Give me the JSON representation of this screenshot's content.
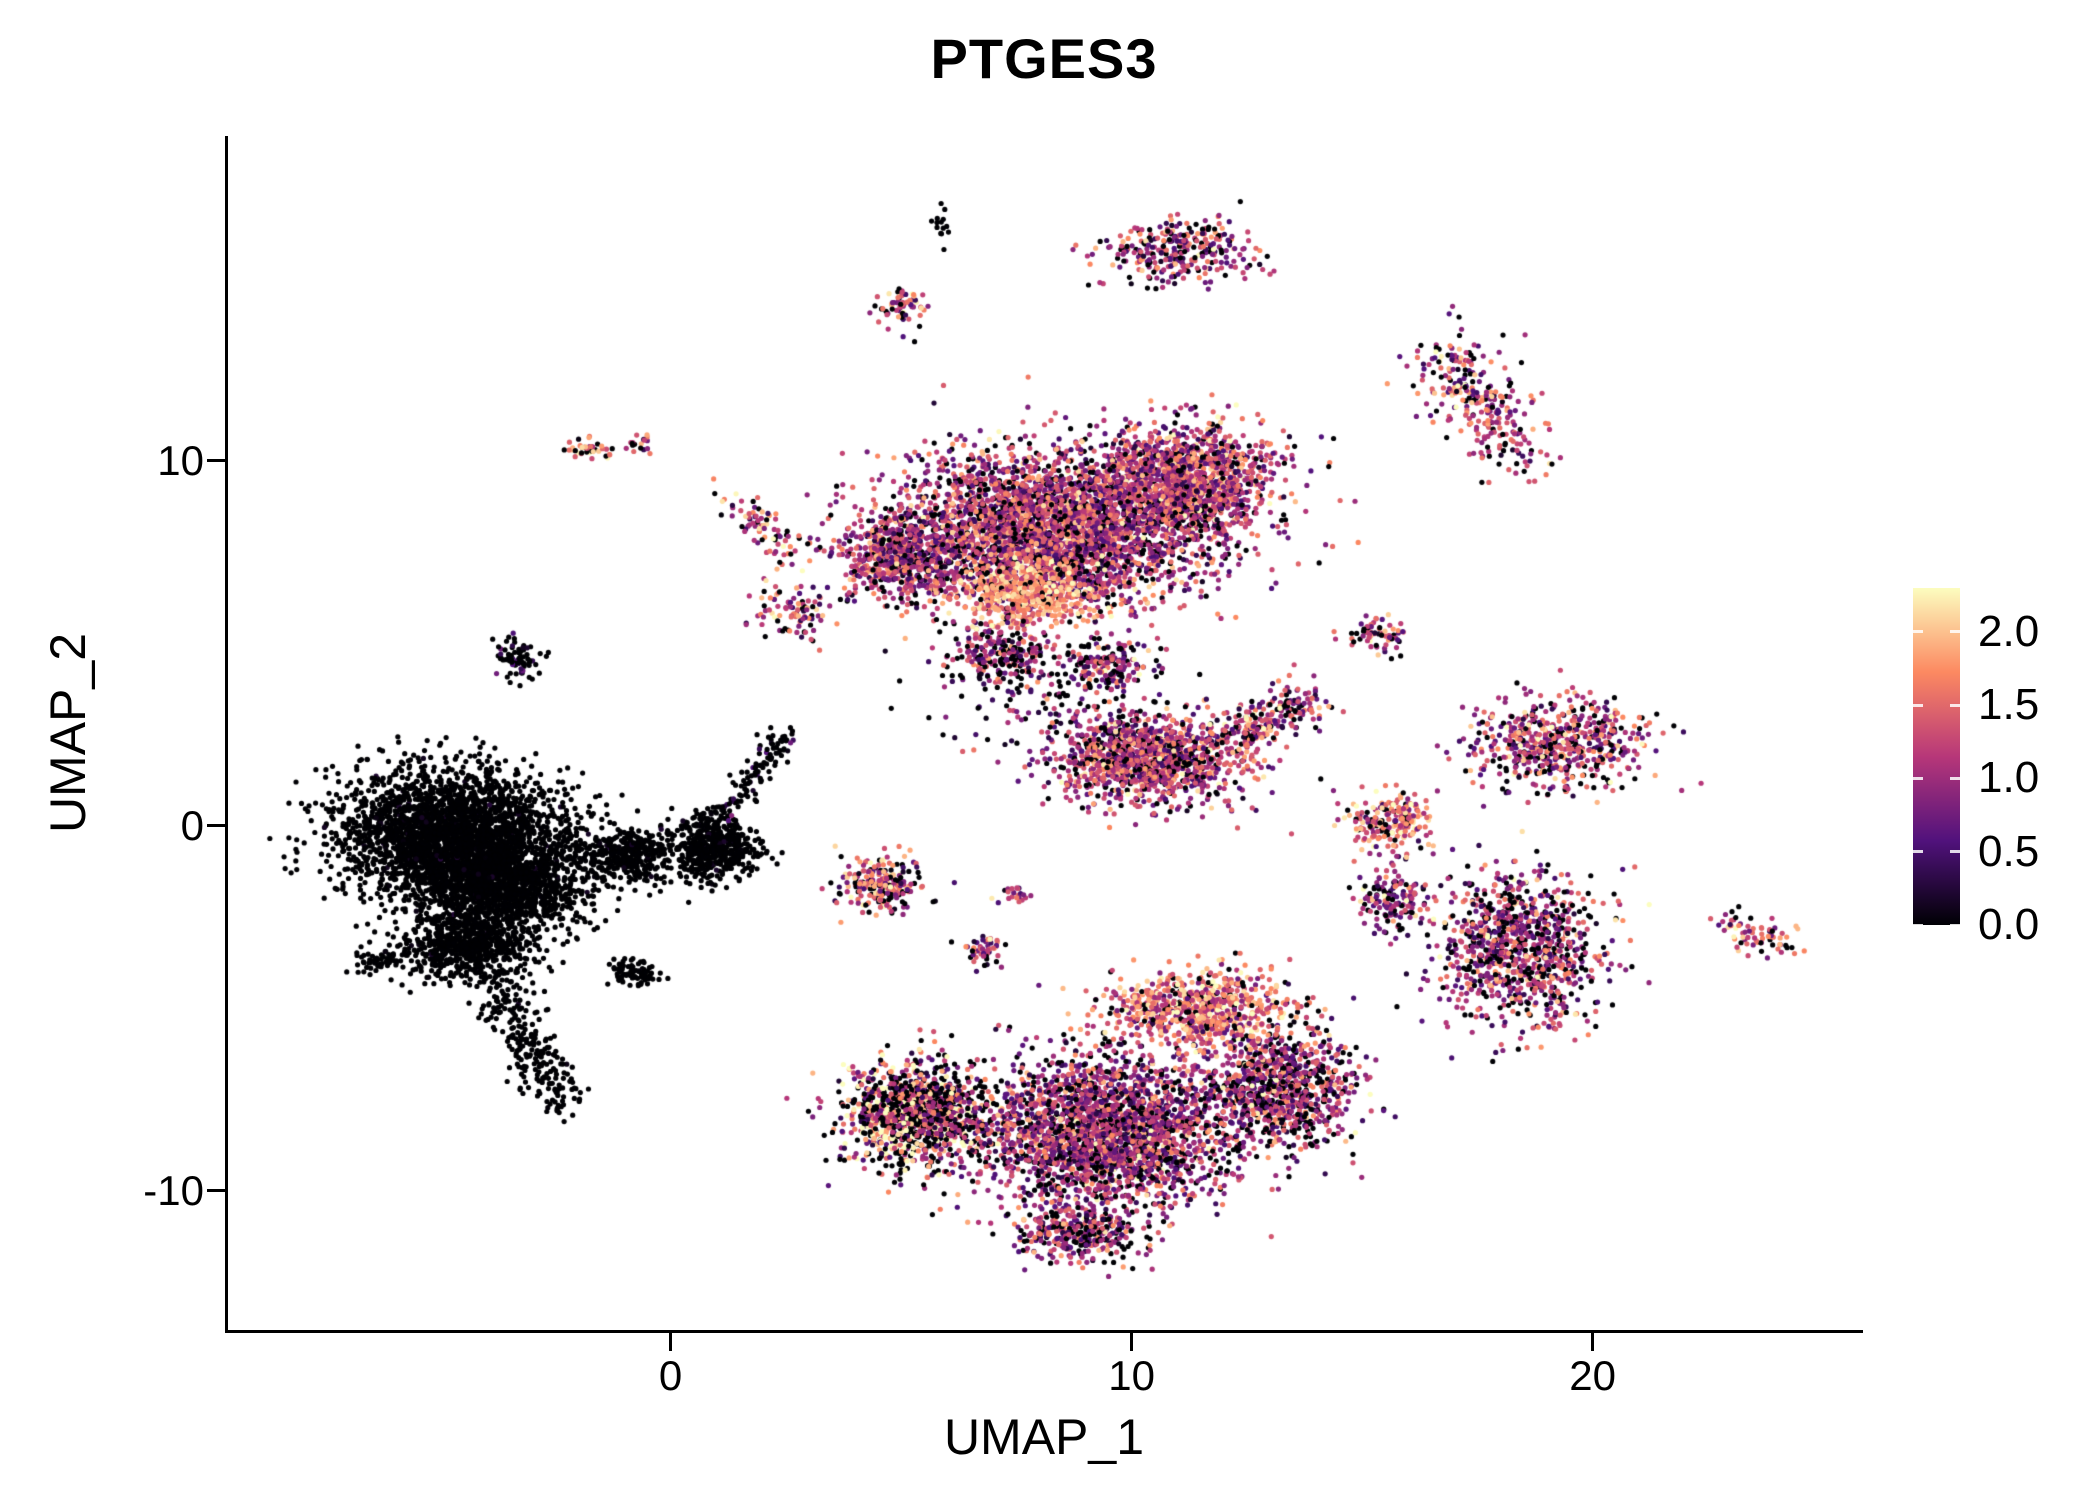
{
  "chart_data": {
    "type": "scatter",
    "title": "PTGES3",
    "xlabel": "UMAP_1",
    "ylabel": "UMAP_2",
    "xlim": [
      -9.6,
      25.8
    ],
    "ylim": [
      -13.9,
      18.9
    ],
    "x_ticks": [
      0,
      10,
      20
    ],
    "y_ticks": [
      -10,
      0,
      10
    ],
    "grid": false,
    "point_radius_px": 2.6,
    "colorbar": {
      "position": "right",
      "ticks": [
        2.0,
        1.5,
        1.0,
        0.5,
        0.0
      ],
      "vmin": 0,
      "vmax": 2.3,
      "colormap": "magma",
      "stops": [
        [
          0.0,
          "#000004"
        ],
        [
          0.25,
          "#51127c"
        ],
        [
          0.5,
          "#b73779"
        ],
        [
          0.75,
          "#fc8961"
        ],
        [
          1.0,
          "#fcfdbf"
        ]
      ]
    },
    "colors": {
      "background": "#ffffff",
      "axis": "#000000",
      "text": "#000000"
    },
    "clusters": [
      {
        "name": "black-main",
        "type": "blob",
        "cx": -4.8,
        "cy": -0.2,
        "rx": 2.3,
        "ry": 1.7,
        "n": 2600,
        "mean": 0.05,
        "sd": 0.1,
        "zero": 0.97
      },
      {
        "name": "black-main-2",
        "type": "blob",
        "cx": -3.6,
        "cy": -1.6,
        "rx": 1.8,
        "ry": 1.3,
        "n": 1400,
        "mean": 0.05,
        "sd": 0.1,
        "zero": 0.97
      },
      {
        "name": "black-lower",
        "type": "blob",
        "cx": -4.4,
        "cy": -3.3,
        "rx": 1.4,
        "ry": 1.0,
        "n": 700,
        "mean": 0.05,
        "sd": 0.1,
        "zero": 0.97
      },
      {
        "name": "black-tail",
        "type": "streak",
        "x1": -3.8,
        "y1": -4.4,
        "x2": -2.3,
        "y2": -7.7,
        "w": 0.3,
        "n": 240,
        "mean": 0.05,
        "sd": 0.1,
        "zero": 0.97
      },
      {
        "name": "black-left-wisp",
        "type": "blob",
        "cx": -6.4,
        "cy": -3.7,
        "rx": 0.5,
        "ry": 0.3,
        "n": 50,
        "mean": 0.05,
        "sd": 0.1,
        "zero": 0.97
      },
      {
        "name": "black-bridge",
        "type": "blob",
        "cx": -0.9,
        "cy": -0.8,
        "rx": 1.0,
        "ry": 0.7,
        "n": 350,
        "mean": 0.05,
        "sd": 0.1,
        "zero": 0.96
      },
      {
        "name": "black-right-lobe",
        "type": "blob",
        "cx": 0.9,
        "cy": -0.6,
        "rx": 0.9,
        "ry": 0.85,
        "n": 550,
        "mean": 0.05,
        "sd": 0.1,
        "zero": 0.96
      },
      {
        "name": "black-bottom-clump",
        "type": "blob",
        "cx": -0.8,
        "cy": -4.0,
        "rx": 0.5,
        "ry": 0.35,
        "n": 80,
        "mean": 0.05,
        "sd": 0.1,
        "zero": 0.97
      },
      {
        "name": "black-trail-up",
        "type": "streak",
        "x1": 1.2,
        "y1": 0.2,
        "x2": 2.5,
        "y2": 2.6,
        "w": 0.18,
        "n": 110,
        "mean": 0.3,
        "sd": 0.3,
        "zero": 0.8
      },
      {
        "name": "dark-top-clump",
        "type": "blob",
        "cx": -3.3,
        "cy": 4.6,
        "rx": 0.45,
        "ry": 0.55,
        "n": 80,
        "mean": 0.3,
        "sd": 0.3,
        "zero": 0.8
      },
      {
        "name": "tiny-top-dark",
        "type": "blob",
        "cx": 5.9,
        "cy": 16.6,
        "rx": 0.22,
        "ry": 0.42,
        "n": 14,
        "mean": 0.1,
        "sd": 0.15,
        "zero": 0.9
      },
      {
        "name": "top-hook",
        "type": "blob",
        "cx": 10.8,
        "cy": 15.7,
        "rx": 1.4,
        "ry": 0.85,
        "n": 240,
        "mean": 1.1,
        "sd": 0.55,
        "zero": 0.18
      },
      {
        "name": "top-hook-arm",
        "type": "streak",
        "x1": 11.4,
        "y1": 16.4,
        "x2": 12.7,
        "y2": 15.4,
        "w": 0.25,
        "n": 60,
        "mean": 1.2,
        "sd": 0.5,
        "zero": 0.15
      },
      {
        "name": "top-left-small",
        "type": "blob",
        "cx": 5.0,
        "cy": 14.2,
        "rx": 0.5,
        "ry": 0.55,
        "n": 70,
        "mean": 1.4,
        "sd": 0.55,
        "zero": 0.2
      },
      {
        "name": "upper-left-a",
        "type": "blob",
        "cx": -1.8,
        "cy": 10.3,
        "rx": 0.5,
        "ry": 0.3,
        "n": 40,
        "mean": 1.6,
        "sd": 0.5,
        "zero": 0.15
      },
      {
        "name": "upper-left-b",
        "type": "blob",
        "cx": -0.6,
        "cy": 10.5,
        "rx": 0.3,
        "ry": 0.25,
        "n": 18,
        "mean": 1.2,
        "sd": 0.5,
        "zero": 0.15
      },
      {
        "name": "upper-left-streak",
        "type": "streak",
        "x1": 1.3,
        "y1": 8.9,
        "x2": 2.9,
        "y2": 7.4,
        "w": 0.25,
        "n": 80,
        "mean": 1.3,
        "sd": 0.55,
        "zero": 0.2
      },
      {
        "name": "central-main",
        "type": "blob",
        "cx": 8.2,
        "cy": 8.1,
        "rx": 3.2,
        "ry": 2.0,
        "n": 3600,
        "mean": 1.1,
        "sd": 0.5,
        "zero": 0.13
      },
      {
        "name": "central-right-lobe",
        "type": "blob",
        "cx": 11.2,
        "cy": 9.4,
        "rx": 1.8,
        "ry": 1.5,
        "n": 1300,
        "mean": 1.2,
        "sd": 0.5,
        "zero": 0.1
      },
      {
        "name": "central-left-lobe",
        "type": "blob",
        "cx": 4.9,
        "cy": 7.4,
        "rx": 1.2,
        "ry": 1.1,
        "n": 550,
        "mean": 1.1,
        "sd": 0.5,
        "zero": 0.15
      },
      {
        "name": "central-bright-patch",
        "type": "blob",
        "cx": 7.7,
        "cy": 6.4,
        "rx": 1.3,
        "ry": 0.85,
        "n": 550,
        "mean": 1.8,
        "sd": 0.35,
        "zero": 0.06
      },
      {
        "name": "central-below-a",
        "type": "blob",
        "cx": 7.1,
        "cy": 4.7,
        "rx": 1.1,
        "ry": 0.8,
        "n": 240,
        "mean": 1.0,
        "sd": 0.5,
        "zero": 0.3
      },
      {
        "name": "central-below-b",
        "type": "blob",
        "cx": 9.4,
        "cy": 4.4,
        "rx": 0.9,
        "ry": 0.7,
        "n": 170,
        "mean": 1.0,
        "sd": 0.5,
        "zero": 0.3
      },
      {
        "name": "mid-right",
        "type": "blob",
        "cx": 10.4,
        "cy": 1.8,
        "rx": 1.9,
        "ry": 1.15,
        "n": 1250,
        "mean": 1.15,
        "sd": 0.5,
        "zero": 0.15
      },
      {
        "name": "mid-right-arm",
        "type": "streak",
        "x1": 12.1,
        "y1": 2.4,
        "x2": 13.9,
        "y2": 3.5,
        "w": 0.35,
        "n": 220,
        "mean": 1.2,
        "sd": 0.5,
        "zero": 0.12
      },
      {
        "name": "mid-small",
        "type": "blob",
        "cx": 4.6,
        "cy": -1.6,
        "rx": 0.85,
        "ry": 0.7,
        "n": 230,
        "mean": 1.35,
        "sd": 0.6,
        "zero": 0.2
      },
      {
        "name": "mid-tiny-a",
        "type": "blob",
        "cx": 6.8,
        "cy": -3.4,
        "rx": 0.42,
        "ry": 0.45,
        "n": 50,
        "mean": 1.1,
        "sd": 0.5,
        "zero": 0.25
      },
      {
        "name": "mid-tiny-b",
        "type": "blob",
        "cx": 7.5,
        "cy": -1.9,
        "rx": 0.3,
        "ry": 0.28,
        "n": 22,
        "mean": 1.0,
        "sd": 0.5,
        "zero": 0.2
      },
      {
        "name": "right-upper-small",
        "type": "blob",
        "cx": 15.3,
        "cy": 5.2,
        "rx": 0.6,
        "ry": 0.45,
        "n": 70,
        "mean": 1.25,
        "sd": 0.5,
        "zero": 0.2
      },
      {
        "name": "right-small",
        "type": "blob",
        "cx": 15.6,
        "cy": 0.1,
        "rx": 0.95,
        "ry": 0.75,
        "n": 210,
        "mean": 1.5,
        "sd": 0.5,
        "zero": 0.12
      },
      {
        "name": "upper-right-streak",
        "type": "streak",
        "x1": 16.8,
        "y1": 12.9,
        "x2": 18.4,
        "y2": 10.1,
        "w": 0.5,
        "n": 280,
        "mean": 1.2,
        "sd": 0.55,
        "zero": 0.18
      },
      {
        "name": "right-wide",
        "type": "blob",
        "cx": 19.2,
        "cy": 2.3,
        "rx": 1.8,
        "ry": 1.2,
        "n": 600,
        "mean": 1.2,
        "sd": 0.55,
        "zero": 0.15
      },
      {
        "name": "right-lower",
        "type": "blob",
        "cx": 18.5,
        "cy": -3.4,
        "rx": 1.7,
        "ry": 2.0,
        "n": 950,
        "mean": 1.05,
        "sd": 0.55,
        "zero": 0.2
      },
      {
        "name": "far-right-streak",
        "type": "streak",
        "x1": 22.9,
        "y1": -2.6,
        "x2": 24.1,
        "y2": -3.3,
        "w": 0.28,
        "n": 70,
        "mean": 1.3,
        "sd": 0.5,
        "zero": 0.15
      },
      {
        "name": "bottom-left",
        "type": "blob",
        "cx": 5.3,
        "cy": -7.9,
        "rx": 1.5,
        "ry": 1.35,
        "n": 1150,
        "mean": 1.35,
        "sd": 0.75,
        "zero": 0.33
      },
      {
        "name": "bottom-main",
        "type": "blob",
        "cx": 9.4,
        "cy": -8.4,
        "rx": 2.6,
        "ry": 2.0,
        "n": 2600,
        "mean": 1.0,
        "sd": 0.5,
        "zero": 0.17
      },
      {
        "name": "bottom-right",
        "type": "blob",
        "cx": 13.2,
        "cy": -7.2,
        "rx": 1.5,
        "ry": 1.6,
        "n": 950,
        "mean": 1.0,
        "sd": 0.55,
        "zero": 0.2
      },
      {
        "name": "bottom-bright-band",
        "type": "blob",
        "cx": 11.4,
        "cy": -5.0,
        "rx": 1.8,
        "ry": 0.95,
        "n": 750,
        "mean": 1.55,
        "sd": 0.45,
        "zero": 0.1
      },
      {
        "name": "bottom-tip",
        "type": "blob",
        "cx": 8.8,
        "cy": -11.2,
        "rx": 1.3,
        "ry": 0.75,
        "n": 320,
        "mean": 0.95,
        "sd": 0.5,
        "zero": 0.25
      },
      {
        "name": "bridge-right",
        "type": "blob",
        "cx": 15.7,
        "cy": -2.0,
        "rx": 0.75,
        "ry": 0.95,
        "n": 160,
        "mean": 1.1,
        "sd": 0.5,
        "zero": 0.25
      },
      {
        "name": "sparse-middle",
        "type": "blob",
        "cx": 8.3,
        "cy": 3.4,
        "rx": 2.4,
        "ry": 1.3,
        "n": 130,
        "mean": 0.9,
        "sd": 0.5,
        "zero": 0.35
      },
      {
        "name": "sparse-left-mid",
        "type": "blob",
        "cx": 2.6,
        "cy": 5.9,
        "rx": 0.9,
        "ry": 0.7,
        "n": 90,
        "mean": 1.2,
        "sd": 0.5,
        "zero": 0.2
      }
    ]
  }
}
